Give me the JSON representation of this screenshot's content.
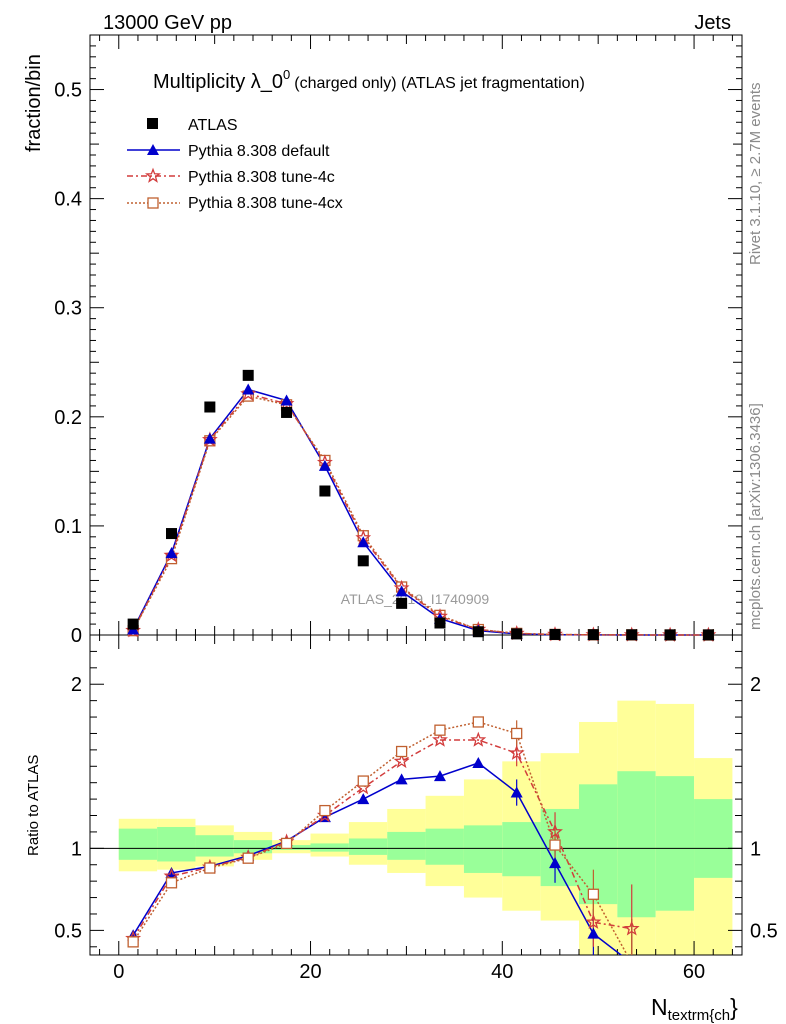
{
  "chart_data": {
    "type": "scatter",
    "header": {
      "left": "13000 GeV pp",
      "right": "Jets"
    },
    "title": "Multiplicity λ_0",
    "title_sup": "0",
    "title_suffix": "(charged only) (ATLAS jet fragmentation)",
    "xlabel_main": "N",
    "xlabel_sub": "textrm{ch",
    "xlabel_brace": "}",
    "ylabel_top": "fraction/bin",
    "ylabel_bottom": "Ratio to ATLAS",
    "watermark": "ATLAS_2019_I1740909",
    "side_label_1": "Rivet 3.1.10, ≥ 2.7M events",
    "side_label_2": "mcplots.cern.ch [arXiv:1306.3436]",
    "xlim": [
      -3,
      65
    ],
    "ylim_top": [
      0,
      0.55
    ],
    "ylim_bottom": [
      0.35,
      2.3
    ],
    "x_ticks": [
      "0",
      "20",
      "40",
      "60"
    ],
    "y_ticks_top": [
      "0",
      "0.1",
      "0.2",
      "0.3",
      "0.4",
      "0.5"
    ],
    "y_ticks_bottom": [
      "0.5",
      "1",
      "2"
    ],
    "legend_position": "top-left",
    "x": [
      1.5,
      5.5,
      9.5,
      13.5,
      17.5,
      21.5,
      25.5,
      29.5,
      33.5,
      37.5,
      41.5,
      45.5,
      49.5,
      53.5,
      57.5,
      61.5
    ],
    "series": [
      {
        "name": "ATLAS",
        "color": "#000000",
        "values": [
          0.01,
          0.093,
          0.209,
          0.238,
          0.204,
          0.132,
          0.068,
          0.029,
          0.011,
          0.003,
          0.001,
          0.0005,
          0.0003,
          0.0002,
          0.0001,
          0.0001
        ]
      },
      {
        "name": "Pythia 8.308 default",
        "color": "#0000cc",
        "values": [
          0.005,
          0.075,
          0.18,
          0.225,
          0.215,
          0.155,
          0.085,
          0.04,
          0.015,
          0.004,
          0.001,
          0.0003,
          0.0001,
          0.0,
          0.0,
          0.0
        ],
        "ratio": [
          0.47,
          0.85,
          0.89,
          0.955,
          1.045,
          1.19,
          1.3,
          1.42,
          1.44,
          1.52,
          1.34,
          0.91,
          0.48,
          0.3
        ]
      },
      {
        "name": "Pythia 8.308 tune-4c",
        "color": "#d23c3c",
        "values": [
          0.004,
          0.073,
          0.179,
          0.221,
          0.212,
          0.158,
          0.089,
          0.043,
          0.017,
          0.005,
          0.0015,
          0.0005,
          0.0002,
          0.0001,
          0.0,
          0.0
        ],
        "ratio": [
          0.45,
          0.83,
          0.885,
          0.945,
          1.04,
          1.2,
          1.37,
          1.53,
          1.66,
          1.66,
          1.58,
          1.1,
          0.55,
          0.51
        ]
      },
      {
        "name": "Pythia 8.308 tune-4cx",
        "color": "#c06030",
        "values": [
          0.004,
          0.07,
          0.178,
          0.219,
          0.211,
          0.16,
          0.091,
          0.044,
          0.018,
          0.005,
          0.0015,
          0.0005,
          0.0002,
          0.0001,
          0.0,
          0.0
        ],
        "ratio": [
          0.43,
          0.79,
          0.88,
          0.94,
          1.03,
          1.23,
          1.41,
          1.59,
          1.72,
          1.77,
          1.7,
          1.02,
          0.72,
          0.3
        ]
      }
    ],
    "bands": {
      "x_edges": [
        0,
        4,
        8,
        12,
        16,
        20,
        24,
        28,
        32,
        36,
        40,
        44,
        48,
        52,
        56,
        60,
        64
      ],
      "yellow_lo": [
        0.86,
        0.87,
        0.89,
        0.93,
        0.97,
        0.95,
        0.9,
        0.85,
        0.77,
        0.7,
        0.62,
        0.56,
        0.35,
        0.35,
        0.35,
        0.35
      ],
      "yellow_hi": [
        1.18,
        1.18,
        1.14,
        1.1,
        1.05,
        1.09,
        1.16,
        1.24,
        1.32,
        1.42,
        1.53,
        1.58,
        1.77,
        1.9,
        1.88,
        1.55
      ],
      "green_lo": [
        0.93,
        0.92,
        0.95,
        0.97,
        0.99,
        0.98,
        0.96,
        0.93,
        0.9,
        0.85,
        0.83,
        0.77,
        0.66,
        0.58,
        0.62,
        0.82
      ],
      "green_hi": [
        1.12,
        1.13,
        1.08,
        1.05,
        1.02,
        1.03,
        1.06,
        1.1,
        1.12,
        1.14,
        1.16,
        1.24,
        1.39,
        1.47,
        1.44,
        1.3
      ]
    },
    "colors": {
      "band_yellow": "#ffff99",
      "band_green": "#99ff99"
    }
  }
}
